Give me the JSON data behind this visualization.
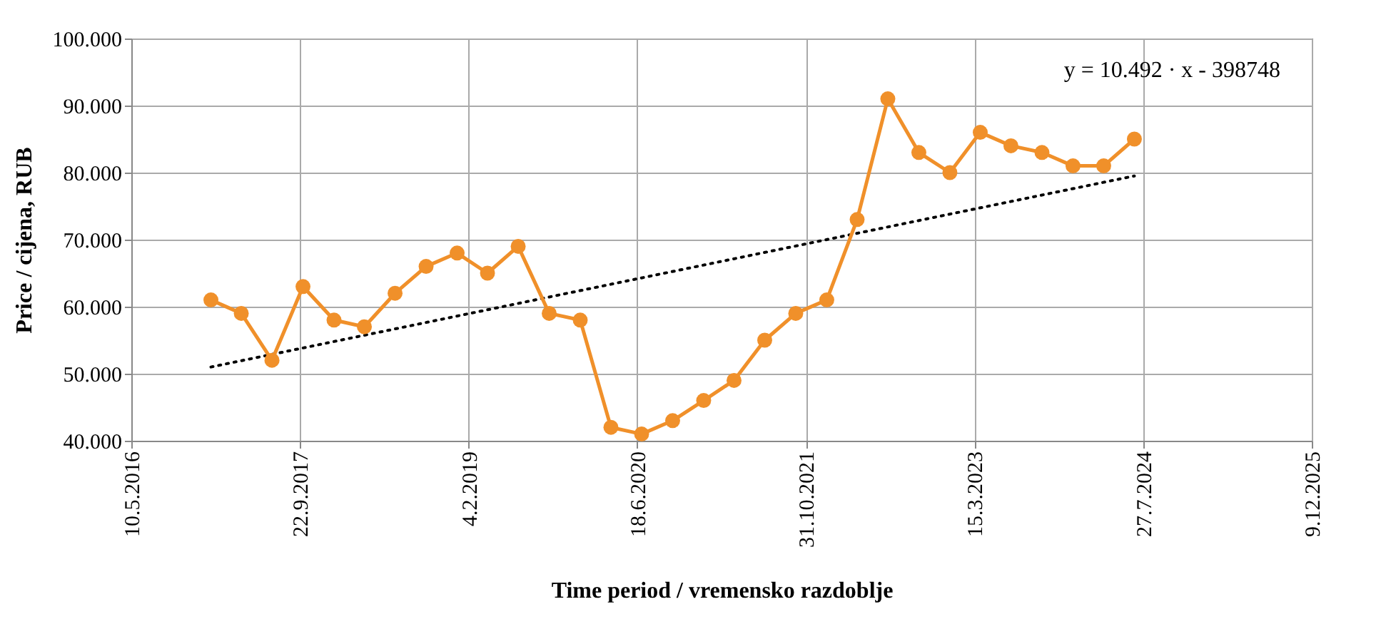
{
  "chart_data": {
    "type": "line",
    "xlabel": "Time period / vremensko razdoblje",
    "ylabel": "Price / cijena, RUB",
    "annotations": [
      "y = 10.492 · x - 398748"
    ],
    "x": [
      "2017-01-01",
      "2017-04-01",
      "2017-07-01",
      "2017-10-01",
      "2018-01-01",
      "2018-04-01",
      "2018-07-01",
      "2018-10-01",
      "2019-01-01",
      "2019-04-01",
      "2019-07-01",
      "2019-10-01",
      "2020-01-01",
      "2020-04-01",
      "2020-07-01",
      "2020-10-01",
      "2021-01-01",
      "2021-04-01",
      "2021-07-01",
      "2021-10-01",
      "2022-01-01",
      "2022-04-01",
      "2022-07-01",
      "2022-10-01",
      "2023-01-01",
      "2023-04-01",
      "2023-07-01",
      "2023-10-01",
      "2024-01-01",
      "2024-04-01",
      "2024-07-01"
    ],
    "xlim": [
      "2016-05-10",
      "2025-12-09"
    ],
    "xticks": [
      {
        "value": "2016-05-10",
        "label": "10.5.2016"
      },
      {
        "value": "2017-09-22",
        "label": "22.9.2017"
      },
      {
        "value": "2019-02-04",
        "label": "4.2.2019"
      },
      {
        "value": "2020-06-18",
        "label": "18.6.2020"
      },
      {
        "value": "2021-10-31",
        "label": "31.10.2021"
      },
      {
        "value": "2023-03-15",
        "label": "15.3.2023"
      },
      {
        "value": "2024-07-27",
        "label": "27.7.2024"
      },
      {
        "value": "2025-12-09",
        "label": "9.12.2025"
      }
    ],
    "ylim": [
      40000,
      100000
    ],
    "yticks": [
      {
        "value": 40000,
        "label": "40.000"
      },
      {
        "value": 50000,
        "label": "50.000"
      },
      {
        "value": 60000,
        "label": "60.000"
      },
      {
        "value": 70000,
        "label": "70.000"
      },
      {
        "value": 80000,
        "label": "80.000"
      },
      {
        "value": 90000,
        "label": "90.000"
      },
      {
        "value": 100000,
        "label": "100.000"
      }
    ],
    "grid": true,
    "marker": "circle",
    "line_style": "solid",
    "series": [
      {
        "color": "#f0902a",
        "values": [
          61000,
          59000,
          52000,
          63000,
          58000,
          57000,
          62000,
          66000,
          68000,
          65000,
          69000,
          59000,
          58000,
          42000,
          41000,
          43000,
          46000,
          49000,
          55000,
          59000,
          61000,
          73000,
          91000,
          83000,
          80000,
          86000,
          84000,
          83000,
          81000,
          81000,
          85000
        ]
      },
      {
        "type": "line",
        "x": [
          "2017-01-01",
          "2024-07-01"
        ],
        "values": [
          51000,
          79500
        ],
        "color": "#000000",
        "line_style": "dotted",
        "marker": "none"
      }
    ]
  }
}
